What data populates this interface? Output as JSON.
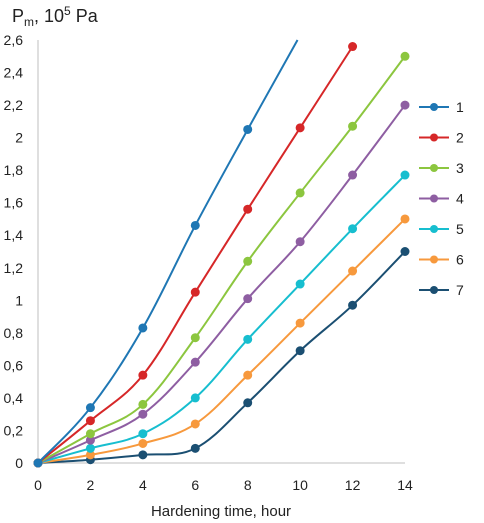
{
  "chart_data": {
    "type": "line",
    "ylabel_main": "P",
    "ylabel_sub": "m",
    "ylabel_rest": ", 10",
    "ylabel_sup": "5",
    "ylabel_unit": " Pa",
    "xlabel": "Hardening time, hour",
    "x": [
      0,
      2,
      4,
      6,
      8,
      10,
      12,
      14
    ],
    "xlim": [
      0,
      14
    ],
    "ylim": [
      0,
      2.6
    ],
    "x_ticks": [
      "0",
      "2",
      "4",
      "6",
      "8",
      "10",
      "12",
      "14"
    ],
    "y_ticks": [
      "0",
      "0,2",
      "0,4",
      "0,6",
      "0,8",
      "1",
      "1,2",
      "1,4",
      "1,6",
      "1,8",
      "2",
      "2,2",
      "2,4",
      "2,6"
    ],
    "grid": false,
    "legend_position": "right",
    "series": [
      {
        "name": "1",
        "color": "#1f77b4",
        "x": [
          0,
          2,
          4,
          6,
          8,
          9.9
        ],
        "values": [
          0,
          0.34,
          0.83,
          1.46,
          2.05,
          2.6
        ],
        "markers": [
          true,
          true,
          true,
          true,
          true,
          false
        ]
      },
      {
        "name": "2",
        "color": "#d62728",
        "x": [
          0,
          2,
          4,
          6,
          8,
          10,
          12
        ],
        "values": [
          0,
          0.26,
          0.54,
          1.05,
          1.56,
          2.06,
          2.56
        ]
      },
      {
        "name": "3",
        "color": "#8cc63f",
        "x": [
          0,
          2,
          4,
          6,
          8,
          10,
          12,
          14
        ],
        "values": [
          0,
          0.18,
          0.36,
          0.77,
          1.24,
          1.66,
          2.07,
          2.5
        ]
      },
      {
        "name": "4",
        "color": "#8e5ea2",
        "x": [
          0,
          2,
          4,
          6,
          8,
          10,
          12,
          14
        ],
        "values": [
          0,
          0.14,
          0.3,
          0.62,
          1.01,
          1.36,
          1.77,
          2.2
        ]
      },
      {
        "name": "5",
        "color": "#17becf",
        "x": [
          0,
          2,
          4,
          6,
          8,
          10,
          12,
          14
        ],
        "values": [
          0,
          0.09,
          0.18,
          0.4,
          0.76,
          1.1,
          1.44,
          1.77
        ]
      },
      {
        "name": "6",
        "color": "#f7993d",
        "x": [
          0,
          2,
          4,
          6,
          8,
          10,
          12,
          14
        ],
        "values": [
          0,
          0.05,
          0.12,
          0.24,
          0.54,
          0.86,
          1.18,
          1.5
        ]
      },
      {
        "name": "7",
        "color": "#1b4f72",
        "x": [
          0,
          2,
          4,
          6,
          8,
          10,
          12,
          14
        ],
        "values": [
          0,
          0.02,
          0.05,
          0.09,
          0.37,
          0.69,
          0.97,
          1.3
        ]
      }
    ]
  }
}
